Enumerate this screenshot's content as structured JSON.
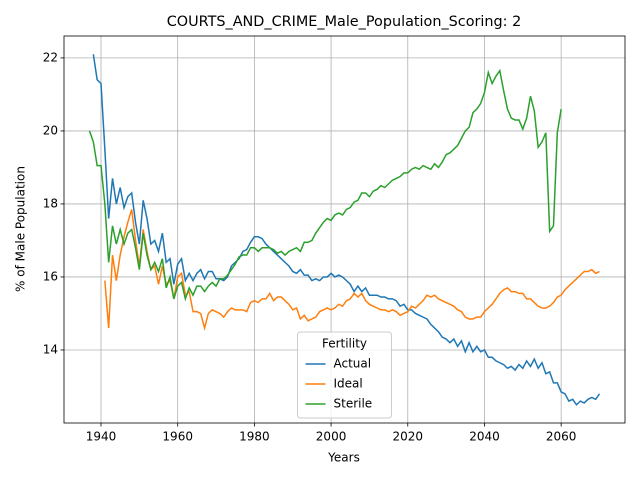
{
  "chart_data": {
    "type": "line",
    "title": "COURTS_AND_CRIME_Male_Population_Scoring: 2",
    "xlabel": "Years",
    "ylabel": "% of Male Population",
    "xlim": [
      1930.35,
      2076.65
    ],
    "xticks": [
      1940,
      1960,
      1980,
      2000,
      2020,
      2040,
      2060
    ],
    "ylim": [
      12.0,
      22.6
    ],
    "yticks": [
      14,
      16,
      18,
      20,
      22
    ],
    "grid": true,
    "legend_title": "Fertility",
    "legend_loc": "lower center",
    "x": [
      1937,
      1938,
      1939,
      1940,
      1941,
      1942,
      1943,
      1944,
      1945,
      1946,
      1947,
      1948,
      1949,
      1950,
      1951,
      1952,
      1953,
      1954,
      1955,
      1956,
      1957,
      1958,
      1959,
      1960,
      1961,
      1962,
      1963,
      1964,
      1965,
      1966,
      1967,
      1968,
      1969,
      1970,
      1971,
      1972,
      1973,
      1974,
      1975,
      1976,
      1977,
      1978,
      1979,
      1980,
      1981,
      1982,
      1983,
      1984,
      1985,
      1986,
      1987,
      1988,
      1989,
      1990,
      1991,
      1992,
      1993,
      1994,
      1995,
      1996,
      1997,
      1998,
      1999,
      2000,
      2001,
      2002,
      2003,
      2004,
      2005,
      2006,
      2007,
      2008,
      2009,
      2010,
      2011,
      2012,
      2013,
      2014,
      2015,
      2016,
      2017,
      2018,
      2019,
      2020,
      2021,
      2022,
      2023,
      2024,
      2025,
      2026,
      2027,
      2028,
      2029,
      2030,
      2031,
      2032,
      2033,
      2034,
      2035,
      2036,
      2037,
      2038,
      2039,
      2040,
      2041,
      2042,
      2043,
      2044,
      2045,
      2046,
      2047,
      2048,
      2049,
      2050,
      2051,
      2052,
      2053,
      2054,
      2055,
      2056,
      2057,
      2058,
      2059,
      2060,
      2061,
      2062,
      2063,
      2064,
      2065,
      2066,
      2067,
      2068,
      2069,
      2070
    ],
    "series": [
      {
        "name": "Actual",
        "color": "#1f77b4",
        "values": [
          null,
          22.1,
          21.4,
          21.3,
          19.5,
          17.6,
          18.7,
          18.0,
          18.45,
          17.9,
          18.2,
          18.3,
          17.5,
          16.9,
          18.1,
          17.6,
          16.9,
          17.0,
          16.7,
          17.2,
          16.4,
          16.5,
          15.8,
          16.35,
          16.5,
          15.9,
          16.1,
          15.9,
          16.1,
          16.2,
          15.95,
          16.15,
          16.15,
          15.95,
          15.95,
          15.9,
          16.0,
          16.3,
          16.4,
          16.5,
          16.7,
          16.75,
          16.95,
          17.1,
          17.1,
          17.05,
          16.9,
          16.8,
          16.7,
          16.6,
          16.5,
          16.4,
          16.3,
          16.15,
          16.1,
          16.2,
          16.05,
          16.05,
          15.9,
          15.95,
          15.9,
          16.0,
          16.0,
          16.1,
          16.0,
          16.05,
          16.0,
          15.9,
          15.8,
          15.6,
          15.75,
          15.6,
          15.7,
          15.5,
          15.5,
          15.5,
          15.45,
          15.45,
          15.4,
          15.4,
          15.35,
          15.2,
          15.25,
          15.1,
          15.1,
          15.0,
          14.95,
          14.9,
          14.85,
          14.7,
          14.6,
          14.5,
          14.35,
          14.3,
          14.2,
          14.3,
          14.1,
          14.25,
          13.95,
          14.2,
          13.95,
          14.1,
          13.95,
          14.0,
          13.8,
          13.8,
          13.7,
          13.65,
          13.6,
          13.5,
          13.55,
          13.45,
          13.6,
          13.5,
          13.7,
          13.55,
          13.75,
          13.5,
          13.65,
          13.35,
          13.4,
          13.1,
          13.1,
          12.85,
          12.8,
          12.6,
          12.65,
          12.5,
          12.6,
          12.55,
          12.65,
          12.7,
          12.65,
          12.8
        ]
      },
      {
        "name": "Ideal",
        "color": "#ff7f0e",
        "values": [
          null,
          null,
          null,
          null,
          15.9,
          14.6,
          16.6,
          15.9,
          16.6,
          17.1,
          17.5,
          17.85,
          17.0,
          16.3,
          17.3,
          16.7,
          16.2,
          16.3,
          15.8,
          16.3,
          15.8,
          15.9,
          15.4,
          16.0,
          16.1,
          15.5,
          15.6,
          15.05,
          15.05,
          15.0,
          14.6,
          15.0,
          15.1,
          15.05,
          15.0,
          14.9,
          15.05,
          15.15,
          15.1,
          15.1,
          15.1,
          15.05,
          15.3,
          15.35,
          15.3,
          15.4,
          15.4,
          15.55,
          15.35,
          15.45,
          15.45,
          15.35,
          15.25,
          15.1,
          15.15,
          14.85,
          14.95,
          14.8,
          14.85,
          14.9,
          15.05,
          15.1,
          15.15,
          15.1,
          15.15,
          15.25,
          15.2,
          15.35,
          15.4,
          15.55,
          15.45,
          15.55,
          15.35,
          15.25,
          15.2,
          15.15,
          15.1,
          15.1,
          15.05,
          15.1,
          15.05,
          14.95,
          15.0,
          15.05,
          15.2,
          15.15,
          15.25,
          15.35,
          15.5,
          15.45,
          15.5,
          15.4,
          15.35,
          15.3,
          15.25,
          15.2,
          15.1,
          15.05,
          14.9,
          14.85,
          14.85,
          14.9,
          14.9,
          15.05,
          15.15,
          15.25,
          15.4,
          15.55,
          15.65,
          15.7,
          15.6,
          15.6,
          15.55,
          15.55,
          15.4,
          15.4,
          15.3,
          15.2,
          15.15,
          15.15,
          15.2,
          15.3,
          15.45,
          15.5,
          15.65,
          15.75,
          15.85,
          15.95,
          16.05,
          16.15,
          16.15,
          16.2,
          16.1,
          16.15
        ]
      },
      {
        "name": "Sterile",
        "color": "#2ca02c",
        "values": [
          20.0,
          19.7,
          19.05,
          19.05,
          18.0,
          16.4,
          17.4,
          16.9,
          17.3,
          16.9,
          17.2,
          17.3,
          16.8,
          16.2,
          17.2,
          16.6,
          16.2,
          16.4,
          16.15,
          16.5,
          15.7,
          16.0,
          15.4,
          15.75,
          15.85,
          15.4,
          15.7,
          15.5,
          15.75,
          15.75,
          15.6,
          15.75,
          15.85,
          15.75,
          15.95,
          15.95,
          16.05,
          16.2,
          16.35,
          16.55,
          16.6,
          16.6,
          16.8,
          16.8,
          16.7,
          16.8,
          16.8,
          16.8,
          16.75,
          16.65,
          16.7,
          16.6,
          16.7,
          16.75,
          16.8,
          16.7,
          16.95,
          16.95,
          17.0,
          17.2,
          17.35,
          17.5,
          17.6,
          17.55,
          17.7,
          17.75,
          17.7,
          17.85,
          17.9,
          18.05,
          18.1,
          18.3,
          18.3,
          18.2,
          18.35,
          18.4,
          18.5,
          18.45,
          18.55,
          18.65,
          18.7,
          18.75,
          18.85,
          18.85,
          18.95,
          19.0,
          18.95,
          19.05,
          19.0,
          18.95,
          19.1,
          19.0,
          19.15,
          19.35,
          19.4,
          19.5,
          19.6,
          19.8,
          20.0,
          20.1,
          20.5,
          20.6,
          20.75,
          21.05,
          21.6,
          21.3,
          21.5,
          21.65,
          21.1,
          20.6,
          20.35,
          20.3,
          20.3,
          20.05,
          20.35,
          20.95,
          20.55,
          19.55,
          19.7,
          19.95,
          17.25,
          17.4,
          19.95,
          20.6,
          null,
          null,
          null,
          null,
          null,
          null,
          null,
          null,
          null,
          null
        ]
      }
    ]
  }
}
